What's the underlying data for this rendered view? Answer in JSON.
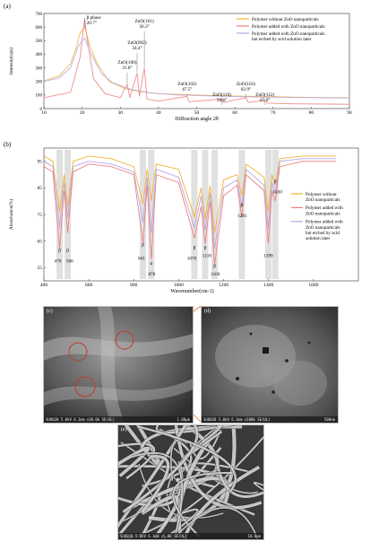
{
  "figure_labels": {
    "a": "(a)",
    "b": "(b)",
    "c": "(c)",
    "d": "(d)",
    "e": "(e)"
  },
  "series_colors": {
    "without": "#f2b233",
    "with": "#ef7f7f",
    "etched": "#b8a6e6"
  },
  "chart_data": [
    {
      "type": "line",
      "xlabel": "Diffraction angle 2θ",
      "ylabel": "Intensity(cps)",
      "xlim": [
        10,
        90
      ],
      "ylim": [
        0,
        700
      ],
      "x_ticks": [
        10,
        20,
        30,
        40,
        50,
        60,
        70,
        80,
        90
      ],
      "y_ticks": [
        0,
        100,
        200,
        300,
        400,
        500,
        600,
        700
      ],
      "legend_position": "top-right",
      "series": [
        {
          "name": "Polymer without ZnO nanoparticals",
          "color": "#f2b233",
          "x": [
            10,
            14,
            17,
            18.5,
            19.5,
            20.7,
            22,
            24,
            27,
            31,
            35,
            40,
            50,
            60,
            70,
            80,
            90
          ],
          "y": [
            205,
            240,
            330,
            450,
            560,
            600,
            460,
            330,
            200,
            150,
            125,
            110,
            100,
            92,
            88,
            82,
            80
          ]
        },
        {
          "name": "Polymer added with ZnO nanoparticals",
          "color": "#ef7f7f",
          "x": [
            10,
            17,
            19.5,
            20.3,
            20.7,
            21.2,
            23,
            26,
            30,
            31.8,
            32.5,
            34.4,
            35,
            36.3,
            37,
            40,
            47.5,
            48,
            56.6,
            57,
            62.9,
            63.5,
            67.9,
            68.5,
            75,
            90
          ],
          "y": [
            80,
            120,
            380,
            580,
            660,
            540,
            220,
            110,
            80,
            180,
            80,
            260,
            90,
            300,
            70,
            55,
            90,
            50,
            70,
            45,
            80,
            45,
            60,
            40,
            35,
            32
          ]
        },
        {
          "name": "Polymer added with ZnO nanoparticals but etched by acid solution later",
          "color": "#b8a6e6",
          "x": [
            10,
            14,
            17,
            19,
            20.7,
            22,
            25,
            28,
            33,
            38,
            45,
            55,
            65,
            75,
            90
          ],
          "y": [
            200,
            225,
            300,
            460,
            520,
            420,
            260,
            190,
            140,
            115,
            100,
            92,
            86,
            82,
            78
          ]
        }
      ],
      "annotations": [
        {
          "text": "β phase",
          "text2": "20.7°",
          "x": 20.7,
          "y": 660
        },
        {
          "text": "ZnO(101)",
          "text2": "36.3°",
          "x": 36.3,
          "y": 300
        },
        {
          "text": "ZnO(002)",
          "text2": "34.4°",
          "x": 34.4,
          "y": 260
        },
        {
          "text": "ZnO(100)",
          "text2": "31.8°",
          "x": 31.8,
          "y": 180
        },
        {
          "text": "ZnO(102)",
          "text2": "47.5°",
          "x": 47.5,
          "y": 90
        },
        {
          "text": "ZnO(110)",
          "text2": "56.6°",
          "x": 56.6,
          "y": 70
        },
        {
          "text": "ZnO(103)",
          "text2": "62.9°",
          "x": 62.9,
          "y": 80
        },
        {
          "text": "ZnO(112)",
          "text2": "67.9°",
          "x": 67.9,
          "y": 60
        }
      ]
    },
    {
      "type": "line",
      "xlabel": "Wavenumber(cm-1)",
      "ylabel": "Absorbance(%)",
      "xlim": [
        400,
        1800
      ],
      "ylim": [
        50,
        100
      ],
      "x_ticks": [
        400,
        600,
        800,
        1000,
        1200,
        1400,
        1600
      ],
      "y_ticks": [
        55,
        65,
        75,
        85,
        95
      ],
      "legend_position": "right",
      "bands": [
        470,
        506,
        841,
        878,
        1070,
        1118,
        1160,
        1281,
        1399,
        1430
      ],
      "series": [
        {
          "name": "Polymer without ZnO nanoparticals",
          "color": "#f2b233",
          "x": [
            400,
            440,
            470,
            490,
            506,
            530,
            600,
            700,
            800,
            841,
            860,
            878,
            900,
            1000,
            1070,
            1100,
            1118,
            1140,
            1160,
            1200,
            1260,
            1281,
            1300,
            1380,
            1399,
            1415,
            1430,
            1450,
            1550,
            1700
          ],
          "y": [
            97,
            95,
            76,
            90,
            78,
            95,
            97,
            96,
            93,
            79,
            92,
            80,
            94,
            92,
            74,
            85,
            73,
            86,
            68,
            88,
            90,
            82,
            94,
            89,
            76,
            90,
            86,
            96,
            97,
            97
          ]
        },
        {
          "name": "Polymer added with ZnO nanoparticals",
          "color": "#ef7f7f",
          "x": [
            400,
            440,
            470,
            490,
            506,
            530,
            600,
            700,
            800,
            841,
            860,
            878,
            900,
            1000,
            1070,
            1100,
            1118,
            1140,
            1160,
            1200,
            1260,
            1281,
            1300,
            1380,
            1399,
            1415,
            1430,
            1450,
            1550,
            1700
          ],
          "y": [
            93,
            91,
            62,
            84,
            68,
            91,
            94,
            93,
            90,
            64,
            86,
            58,
            90,
            87,
            66,
            78,
            64,
            80,
            56,
            82,
            86,
            74,
            90,
            84,
            64,
            84,
            80,
            93,
            95,
            95
          ]
        },
        {
          "name": "Polymer added with ZnO nanoparticals but etched by acid solution later",
          "color": "#b8a6e6",
          "x": [
            400,
            440,
            470,
            490,
            506,
            530,
            600,
            700,
            800,
            841,
            860,
            878,
            900,
            1000,
            1070,
            1100,
            1118,
            1140,
            1160,
            1200,
            1260,
            1281,
            1300,
            1380,
            1399,
            1415,
            1430,
            1450,
            1550,
            1700
          ],
          "y": [
            95,
            93,
            70,
            87,
            74,
            93,
            95,
            94,
            91,
            72,
            89,
            68,
            92,
            89,
            70,
            82,
            69,
            83,
            62,
            85,
            88,
            78,
            92,
            86,
            70,
            87,
            83,
            95,
            96,
            96
          ]
        }
      ],
      "peak_labels": [
        {
          "text": "β",
          "x": 470,
          "y": 61
        },
        {
          "text": "470",
          "x": 462,
          "y": 57
        },
        {
          "text": "β",
          "x": 506,
          "y": 61
        },
        {
          "text": "506",
          "x": 515,
          "y": 57
        },
        {
          "text": "β",
          "x": 841,
          "y": 63
        },
        {
          "text": "841",
          "x": 835,
          "y": 58
        },
        {
          "text": "α",
          "x": 878,
          "y": 56
        },
        {
          "text": "878",
          "x": 880,
          "y": 52
        },
        {
          "text": "β",
          "x": 1070,
          "y": 62
        },
        {
          "text": "1070",
          "x": 1058,
          "y": 58
        },
        {
          "text": "β",
          "x": 1118,
          "y": 62
        },
        {
          "text": "1118",
          "x": 1125,
          "y": 59
        },
        {
          "text": "β",
          "x": 1160,
          "y": 55
        },
        {
          "text": "1160",
          "x": 1163,
          "y": 52
        },
        {
          "text": "β",
          "x": 1281,
          "y": 78
        },
        {
          "text": "1281",
          "x": 1283,
          "y": 74
        },
        {
          "text": "1399",
          "x": 1399,
          "y": 59
        },
        {
          "text": "β",
          "x": 1430,
          "y": 87
        },
        {
          "text": "1430",
          "x": 1440,
          "y": 83
        }
      ]
    }
  ],
  "sem": {
    "c": {
      "bar": "SU8020 5.0kV 6.1mm x30.0k SE(UL)",
      "scale": "1.00μm"
    },
    "d": {
      "bar": "SU8020 5.0kV 6.1mm x100k SE(UL)",
      "scale": "500nm"
    },
    "e": {
      "bar": "SU8020 5.0kV 6.1mm x5.0k SE(UL)",
      "scale": "10.0μm"
    }
  }
}
